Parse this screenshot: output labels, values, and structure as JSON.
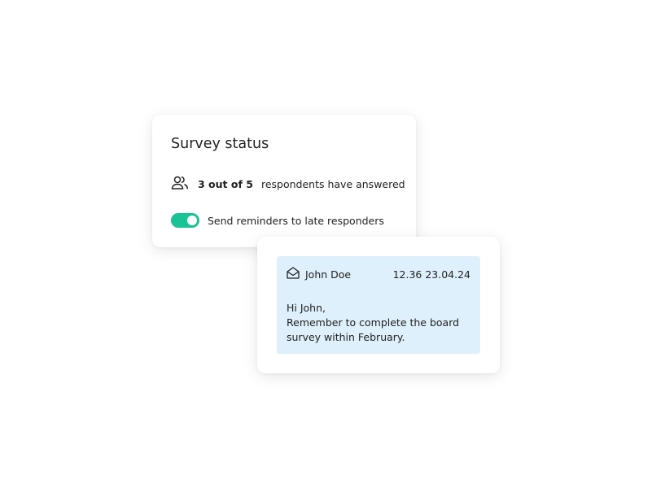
{
  "survey": {
    "title": "Survey status",
    "count_label": "3 out of 5",
    "respondents_text": "respondents have answered",
    "reminder_label": "Send reminders to late responders",
    "reminder_enabled": true,
    "accent_color": "#19c394"
  },
  "message": {
    "sender": "John Doe",
    "timestamp": "12.36 23.04.24",
    "lines": [
      "Hi John,",
      "Remember to complete the board",
      "survey within February."
    ],
    "background": "#def0fb"
  }
}
